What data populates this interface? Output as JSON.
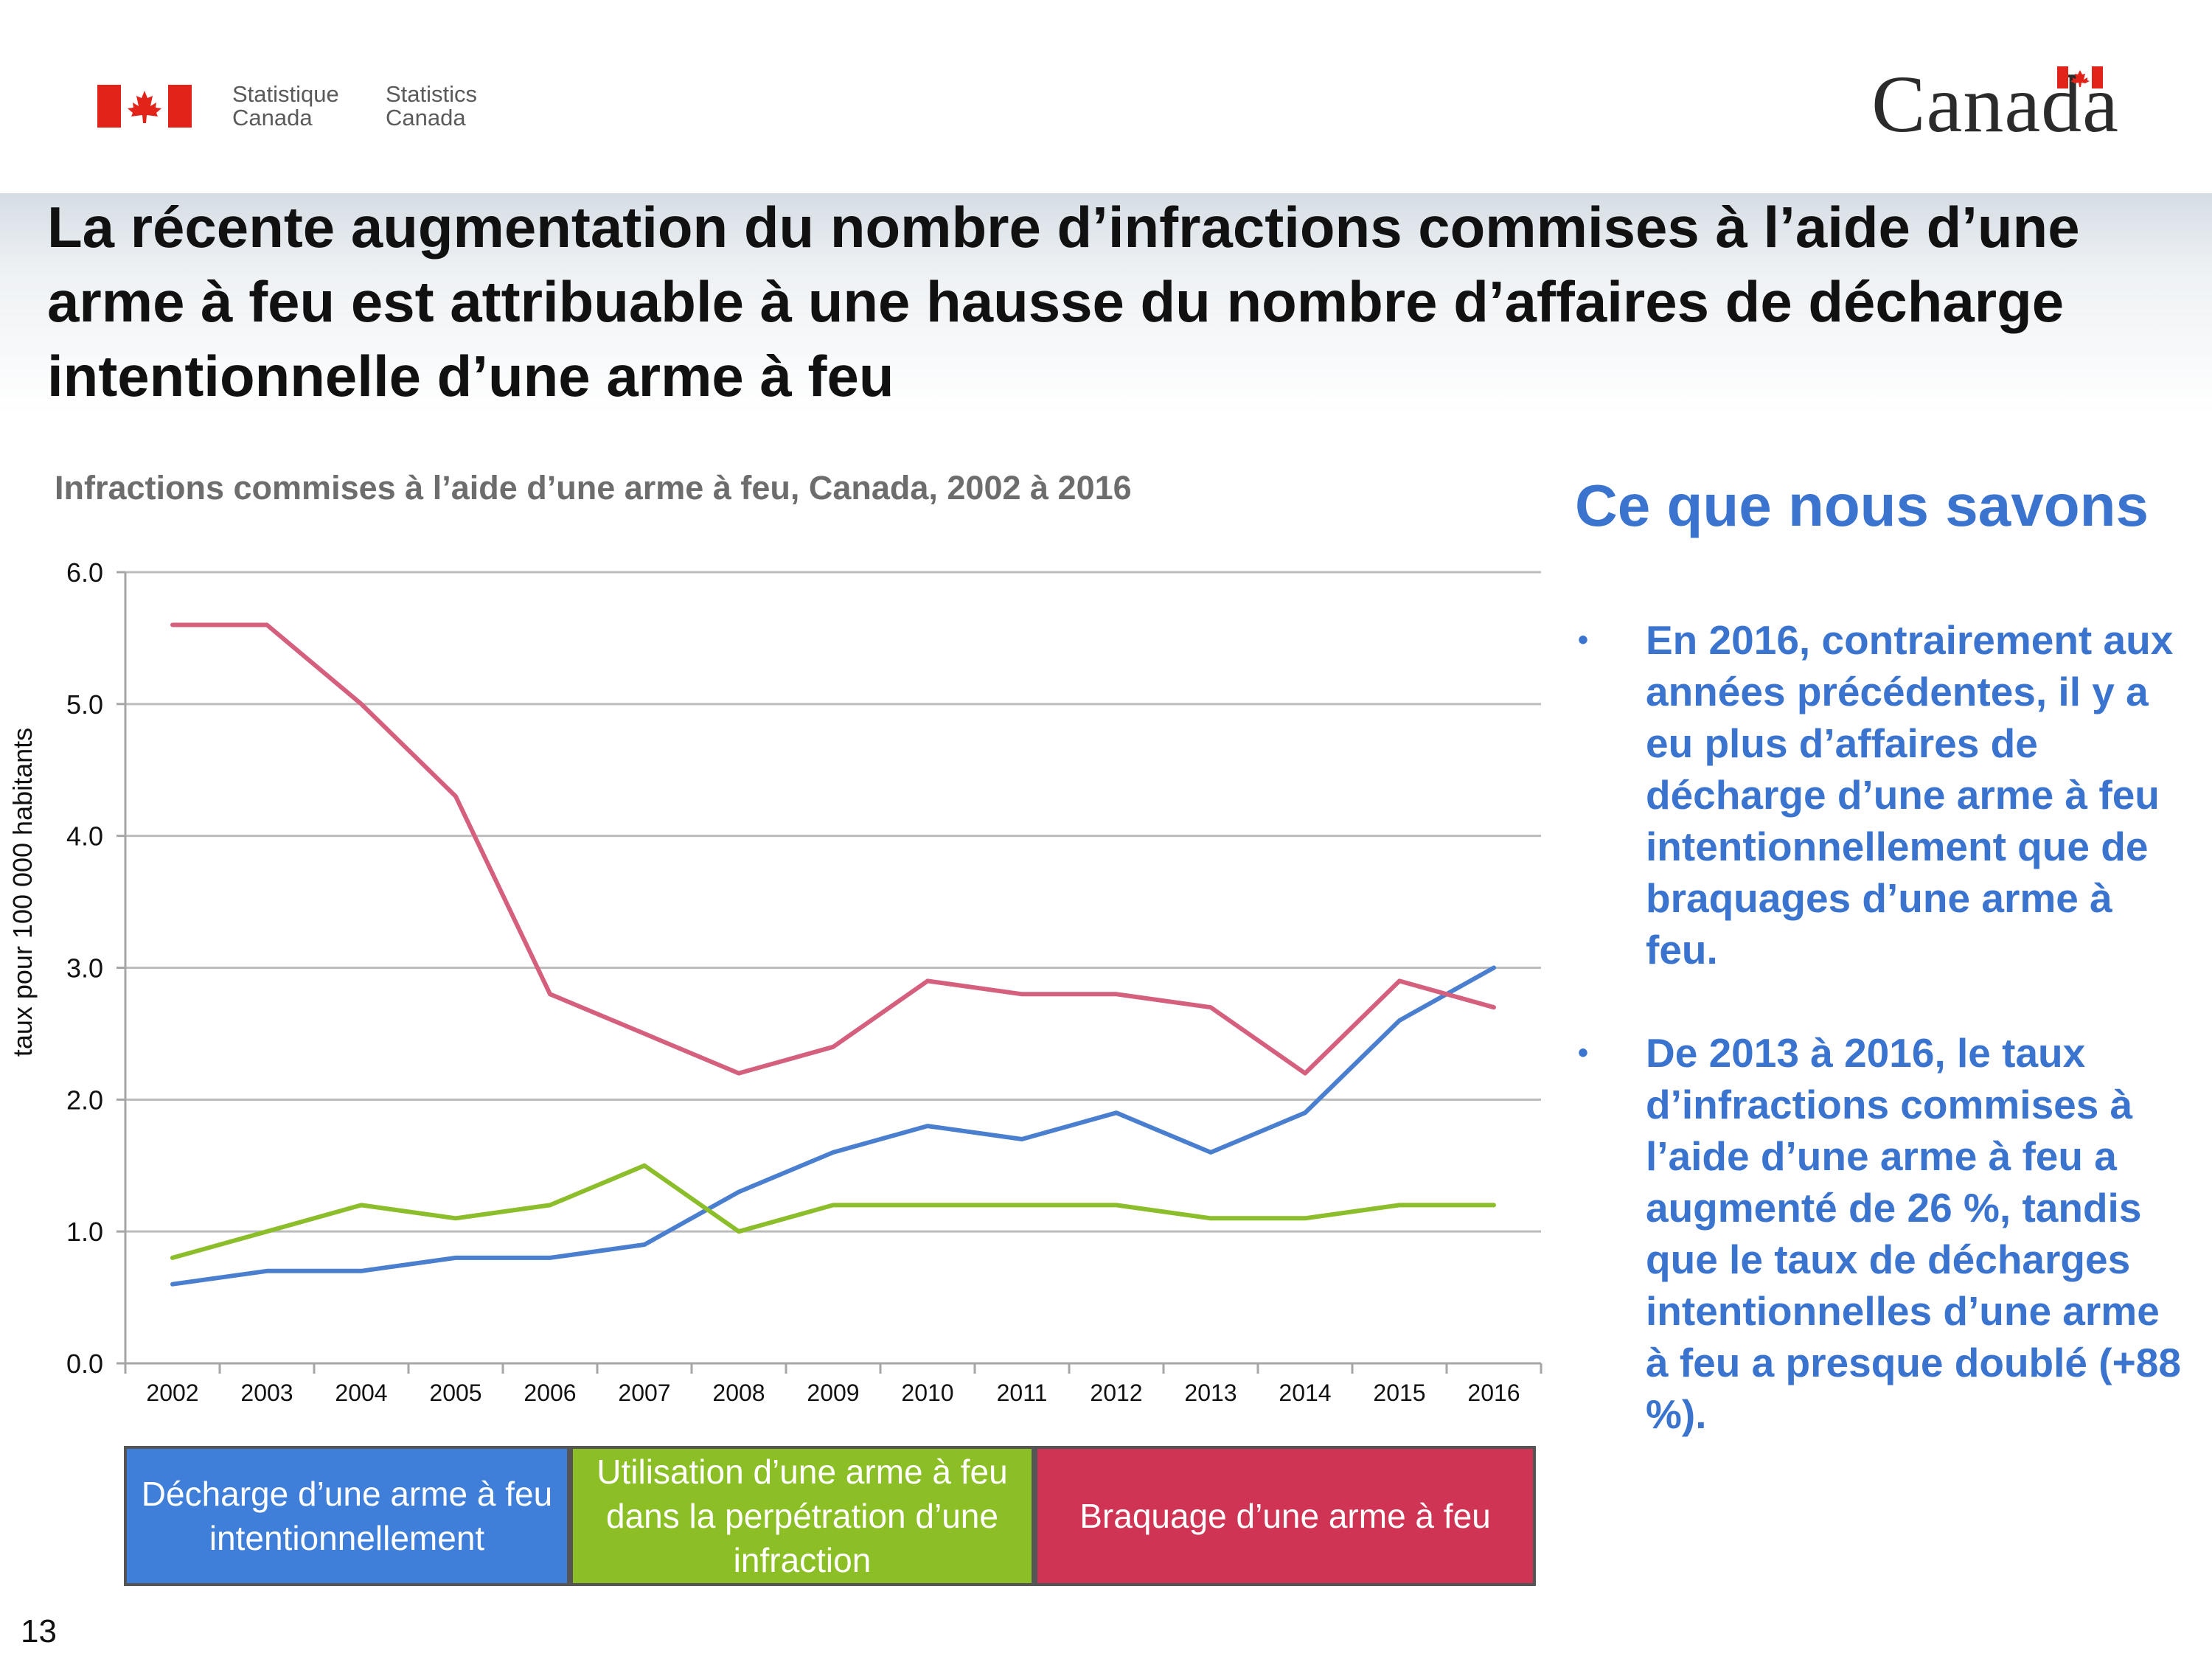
{
  "header": {
    "wordmark_fr_line1": "Statistique",
    "wordmark_fr_line2": "Canada",
    "wordmark_en_line1": "Statistics",
    "wordmark_en_line2": "Canada",
    "canada_wordmark": "Canada",
    "flag_color": "#e2231a"
  },
  "slide": {
    "title": "La récente augmentation du nombre d’infractions commises à l’aide d’une arme à feu est attribuable à une hausse du nombre d’affaires de décharge intentionnelle d’une arme à feu",
    "page_number": "13"
  },
  "side_panel": {
    "title": "Ce que nous savons",
    "bullets": [
      "En 2016, contrairement aux années précédentes, il y a eu plus d’affaires de décharge d’une arme à feu intentionnellement que de braquages d’une arme à feu.",
      "De 2013 à 2016, le taux d’infractions commises à l’aide d’une arme à feu a augmenté de 26 %, tandis que le taux de décharges intentionnelles d’une arme à feu a presque doublé (+88 %)."
    ],
    "color": "#3a74cf"
  },
  "chart_data": {
    "type": "line",
    "title": "Infractions commises à l’aide d’une arme à feu, Canada, 2002 à 2016",
    "xlabel": "",
    "ylabel": "taux pour 100 000 habitants",
    "ylim": [
      0,
      6
    ],
    "yticks": [
      "0.0",
      "1.0",
      "2.0",
      "3.0",
      "4.0",
      "5.0",
      "6.0"
    ],
    "grid": true,
    "legend_position": "bottom",
    "categories": [
      "2002",
      "2003",
      "2004",
      "2005",
      "2006",
      "2007",
      "2008",
      "2009",
      "2010",
      "2011",
      "2012",
      "2013",
      "2014",
      "2015",
      "2016"
    ],
    "series": [
      {
        "name": "Décharge d’une arme à feu intentionnellement",
        "color": "#4a7fcf",
        "legend_color": "#3f7fd9",
        "values": [
          0.6,
          0.7,
          0.7,
          0.8,
          0.8,
          0.9,
          1.3,
          1.6,
          1.8,
          1.7,
          1.9,
          1.6,
          1.9,
          2.6,
          3.0
        ]
      },
      {
        "name": "Utilisation d’une arme à feu dans la perpétration d’une infraction",
        "color": "#8cbd2a",
        "legend_color": "#8cbf26",
        "values": [
          0.8,
          1.0,
          1.2,
          1.1,
          1.2,
          1.5,
          1.0,
          1.2,
          1.2,
          1.2,
          1.2,
          1.1,
          1.1,
          1.2,
          1.2
        ]
      },
      {
        "name": "Braquage d’une arme à feu",
        "color": "#d4607e",
        "legend_color": "#d03454",
        "values": [
          5.6,
          5.6,
          5.0,
          4.3,
          2.8,
          2.5,
          2.2,
          2.4,
          2.9,
          2.8,
          2.8,
          2.7,
          2.2,
          2.9,
          2.7
        ]
      }
    ]
  }
}
